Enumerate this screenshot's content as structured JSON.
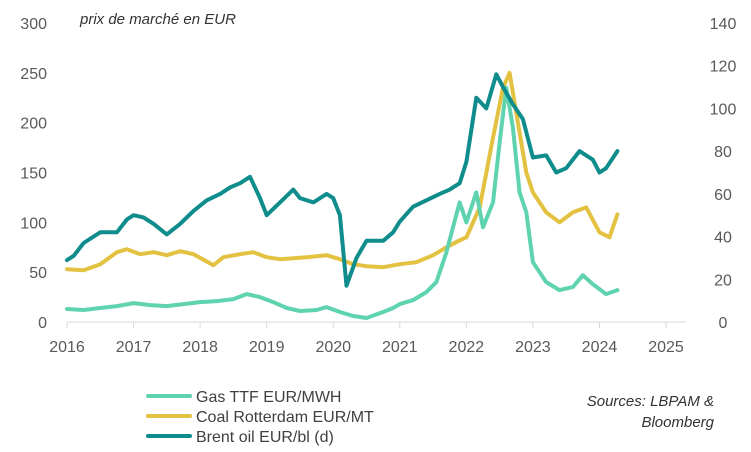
{
  "chart_data": {
    "type": "line",
    "annotation": "prix de marché en EUR",
    "x_ticks": [
      "2016",
      "2017",
      "2018",
      "2019",
      "2020",
      "2021",
      "2022",
      "2023",
      "2024",
      "2025"
    ],
    "xlim": [
      2016,
      2025.3
    ],
    "y_left": {
      "ylim": [
        0,
        300
      ],
      "ticks": [
        "0",
        "50",
        "100",
        "150",
        "200",
        "250",
        "300"
      ]
    },
    "y_right": {
      "ylim": [
        0,
        140
      ],
      "ticks": [
        "0",
        "20",
        "40",
        "60",
        "80",
        "100",
        "120",
        "140"
      ]
    },
    "series": [
      {
        "name": "Gas TTF EUR/MWH",
        "axis": "left",
        "color": "#5fd3b0",
        "points": [
          [
            2016.0,
            13
          ],
          [
            2016.25,
            12
          ],
          [
            2016.5,
            14
          ],
          [
            2016.75,
            16
          ],
          [
            2017.0,
            19
          ],
          [
            2017.25,
            17
          ],
          [
            2017.5,
            16
          ],
          [
            2017.75,
            18
          ],
          [
            2018.0,
            20
          ],
          [
            2018.25,
            21
          ],
          [
            2018.5,
            23
          ],
          [
            2018.7,
            28
          ],
          [
            2018.9,
            25
          ],
          [
            2019.1,
            20
          ],
          [
            2019.3,
            14
          ],
          [
            2019.5,
            11
          ],
          [
            2019.75,
            12
          ],
          [
            2019.9,
            15
          ],
          [
            2020.1,
            10
          ],
          [
            2020.3,
            6
          ],
          [
            2020.5,
            4
          ],
          [
            2020.75,
            10
          ],
          [
            2020.9,
            14
          ],
          [
            2021.0,
            18
          ],
          [
            2021.2,
            22
          ],
          [
            2021.4,
            30
          ],
          [
            2021.55,
            40
          ],
          [
            2021.7,
            70
          ],
          [
            2021.8,
            95
          ],
          [
            2021.9,
            120
          ],
          [
            2022.0,
            100
          ],
          [
            2022.15,
            130
          ],
          [
            2022.25,
            95
          ],
          [
            2022.4,
            120
          ],
          [
            2022.5,
            180
          ],
          [
            2022.6,
            235
          ],
          [
            2022.7,
            195
          ],
          [
            2022.8,
            130
          ],
          [
            2022.9,
            110
          ],
          [
            2023.0,
            60
          ],
          [
            2023.2,
            40
          ],
          [
            2023.4,
            32
          ],
          [
            2023.6,
            35
          ],
          [
            2023.75,
            47
          ],
          [
            2023.9,
            38
          ],
          [
            2024.1,
            28
          ],
          [
            2024.27,
            32
          ]
        ]
      },
      {
        "name": "Coal Rotterdam EUR/MT",
        "axis": "left",
        "color": "#e3c141",
        "points": [
          [
            2016.0,
            53
          ],
          [
            2016.25,
            52
          ],
          [
            2016.5,
            58
          ],
          [
            2016.75,
            70
          ],
          [
            2016.9,
            73
          ],
          [
            2017.1,
            68
          ],
          [
            2017.3,
            70
          ],
          [
            2017.5,
            67
          ],
          [
            2017.7,
            71
          ],
          [
            2017.9,
            68
          ],
          [
            2018.2,
            57
          ],
          [
            2018.35,
            65
          ],
          [
            2018.6,
            68
          ],
          [
            2018.8,
            70
          ],
          [
            2019.0,
            65
          ],
          [
            2019.2,
            63
          ],
          [
            2019.4,
            64
          ],
          [
            2019.6,
            65
          ],
          [
            2019.75,
            66
          ],
          [
            2019.9,
            67
          ],
          [
            2020.1,
            63
          ],
          [
            2020.3,
            58
          ],
          [
            2020.5,
            56
          ],
          [
            2020.75,
            55
          ],
          [
            2021.0,
            58
          ],
          [
            2021.25,
            60
          ],
          [
            2021.5,
            67
          ],
          [
            2021.7,
            75
          ],
          [
            2021.9,
            82
          ],
          [
            2022.0,
            85
          ],
          [
            2022.2,
            115
          ],
          [
            2022.4,
            185
          ],
          [
            2022.55,
            235
          ],
          [
            2022.65,
            250
          ],
          [
            2022.8,
            190
          ],
          [
            2022.9,
            150
          ],
          [
            2023.0,
            130
          ],
          [
            2023.2,
            110
          ],
          [
            2023.4,
            100
          ],
          [
            2023.6,
            110
          ],
          [
            2023.8,
            115
          ],
          [
            2024.0,
            90
          ],
          [
            2024.15,
            85
          ],
          [
            2024.27,
            108
          ]
        ]
      },
      {
        "name": "Brent oil EUR/bl (d)",
        "axis": "right",
        "color": "#0f8c8c",
        "points": [
          [
            2016.0,
            29
          ],
          [
            2016.1,
            31
          ],
          [
            2016.25,
            37
          ],
          [
            2016.4,
            40
          ],
          [
            2016.5,
            42
          ],
          [
            2016.75,
            42
          ],
          [
            2016.9,
            48
          ],
          [
            2017.0,
            50
          ],
          [
            2017.15,
            49
          ],
          [
            2017.3,
            46
          ],
          [
            2017.5,
            41
          ],
          [
            2017.7,
            46
          ],
          [
            2017.9,
            52
          ],
          [
            2018.1,
            57
          ],
          [
            2018.3,
            60
          ],
          [
            2018.45,
            63
          ],
          [
            2018.6,
            65
          ],
          [
            2018.75,
            68
          ],
          [
            2018.9,
            58
          ],
          [
            2019.0,
            50
          ],
          [
            2019.2,
            56
          ],
          [
            2019.4,
            62
          ],
          [
            2019.5,
            58
          ],
          [
            2019.7,
            56
          ],
          [
            2019.9,
            60
          ],
          [
            2020.0,
            58
          ],
          [
            2020.1,
            50
          ],
          [
            2020.2,
            17
          ],
          [
            2020.35,
            30
          ],
          [
            2020.5,
            38
          ],
          [
            2020.75,
            38
          ],
          [
            2020.9,
            42
          ],
          [
            2021.0,
            47
          ],
          [
            2021.2,
            54
          ],
          [
            2021.4,
            57
          ],
          [
            2021.6,
            60
          ],
          [
            2021.75,
            62
          ],
          [
            2021.9,
            65
          ],
          [
            2022.0,
            75
          ],
          [
            2022.15,
            105
          ],
          [
            2022.3,
            100
          ],
          [
            2022.45,
            116
          ],
          [
            2022.55,
            110
          ],
          [
            2022.7,
            102
          ],
          [
            2022.85,
            95
          ],
          [
            2023.0,
            77
          ],
          [
            2023.2,
            78
          ],
          [
            2023.35,
            70
          ],
          [
            2023.5,
            72
          ],
          [
            2023.7,
            80
          ],
          [
            2023.9,
            76
          ],
          [
            2024.0,
            70
          ],
          [
            2024.1,
            72
          ],
          [
            2024.27,
            80
          ]
        ]
      }
    ],
    "legend": [
      "Gas TTF EUR/MWH",
      "Coal Rotterdam EUR/MT",
      "Brent oil EUR/bl (d)"
    ],
    "source": [
      "Sources: LBPAM &",
      "Bloomberg"
    ]
  }
}
